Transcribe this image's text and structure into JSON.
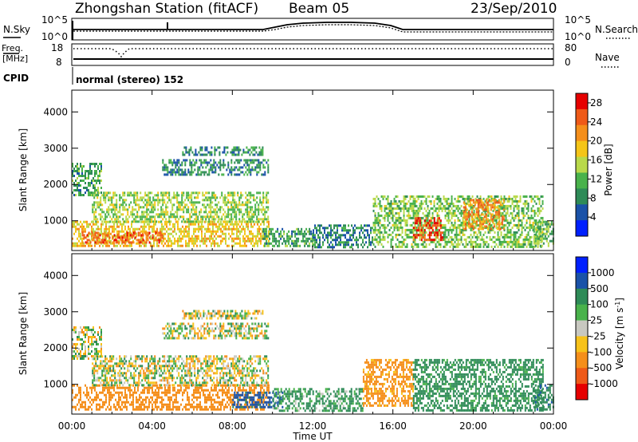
{
  "header": {
    "station": "Zhongshan Station (fitACF)",
    "beam": "Beam 05",
    "date": "23/Sep/2010"
  },
  "summary_panel": {
    "nsky_label": "N.Sky",
    "nsky_ticks": [
      "10^5",
      "10^0"
    ],
    "nsearch_label": "N.Search",
    "nsearch_ticks": [
      "10^5",
      "10^0"
    ],
    "freq_label_line1": "Freq.",
    "freq_label_line2": "[MHz]",
    "freq_ticks": [
      "18",
      "8"
    ],
    "nave_label": "Nave",
    "nave_ticks": [
      "80",
      "0"
    ],
    "cpid_label": "CPID",
    "cpid_text": "normal (stereo) 152"
  },
  "colors": {
    "power": [
      "#0020ff",
      "#1a52a8",
      "#2e8b57",
      "#49b24b",
      "#b9d94a",
      "#f5c518",
      "#f58f1b",
      "#ef5a18",
      "#e60000"
    ],
    "velocity": [
      "#0020ff",
      "#1a52a8",
      "#2e8b57",
      "#49b24b",
      "#c8c8c0",
      "#f7c21a",
      "#f58f1b",
      "#ef5a18",
      "#e60000"
    ]
  },
  "chart_data": [
    {
      "type": "heatmap",
      "title": "",
      "xlabel": "Time UT",
      "ylabel": "Slant Range [km]",
      "x_ticks": [
        "00:00",
        "04:00",
        "08:00",
        "12:00",
        "16:00",
        "20:00",
        "00:00"
      ],
      "xlim_hours": [
        0,
        24
      ],
      "y_ticks": [
        1000,
        2000,
        3000,
        4000
      ],
      "ylim": [
        180,
        4600
      ],
      "colorbar": {
        "label": "Power [dB]",
        "ticks": [
          "4",
          "8",
          "12",
          "16",
          "20",
          "24",
          "28"
        ],
        "range": [
          0,
          30
        ]
      },
      "regions": [
        {
          "t": [
            0.0,
            9.8
          ],
          "r": [
            300,
            1000
          ],
          "value": 18
        },
        {
          "t": [
            0.5,
            4.5
          ],
          "r": [
            400,
            700
          ],
          "value": 24
        },
        {
          "t": [
            0.0,
            1.5
          ],
          "r": [
            1700,
            2600
          ],
          "value": 10
        },
        {
          "t": [
            1.0,
            9.8
          ],
          "r": [
            1000,
            1800
          ],
          "value": 14
        },
        {
          "t": [
            4.5,
            9.8
          ],
          "r": [
            2300,
            2700
          ],
          "value": 8
        },
        {
          "t": [
            5.5,
            9.5
          ],
          "r": [
            2800,
            3050
          ],
          "value": 9
        },
        {
          "t": [
            9.5,
            12.0
          ],
          "r": [
            300,
            800
          ],
          "value": 10
        },
        {
          "t": [
            12.0,
            15.0
          ],
          "r": [
            300,
            900
          ],
          "value": 8
        },
        {
          "t": [
            15.0,
            23.5
          ],
          "r": [
            300,
            1700
          ],
          "value": 13
        },
        {
          "t": [
            17.0,
            18.5
          ],
          "r": [
            500,
            1100
          ],
          "value": 26
        },
        {
          "t": [
            19.5,
            21.5
          ],
          "r": [
            800,
            1600
          ],
          "value": 22
        },
        {
          "t": [
            23.0,
            24.0
          ],
          "r": [
            300,
            1000
          ],
          "value": 12
        }
      ]
    },
    {
      "type": "heatmap",
      "title": "",
      "xlabel": "Time UT",
      "ylabel": "Slant Range [km]",
      "x_ticks": [
        "00:00",
        "04:00",
        "08:00",
        "12:00",
        "16:00",
        "20:00",
        "00:00"
      ],
      "xlim_hours": [
        0,
        24
      ],
      "y_ticks": [
        1000,
        2000,
        3000,
        4000
      ],
      "ylim": [
        180,
        4600
      ],
      "colorbar": {
        "label": "Velocity [m s^-1]",
        "ticks": [
          "1000",
          "500",
          "100",
          "25",
          "-25",
          "-100",
          "-500",
          "-1000"
        ]
      },
      "regions": [
        {
          "t": [
            0.0,
            9.8
          ],
          "r": [
            300,
            1000
          ],
          "value": -300
        },
        {
          "t": [
            0.0,
            1.5
          ],
          "r": [
            1700,
            2600
          ],
          "value": 0
        },
        {
          "t": [
            1.0,
            9.8
          ],
          "r": [
            1000,
            1800
          ],
          "value": 0
        },
        {
          "t": [
            4.5,
            9.8
          ],
          "r": [
            2300,
            2700
          ],
          "value": 0
        },
        {
          "t": [
            5.5,
            9.5
          ],
          "r": [
            2800,
            3050
          ],
          "value": 0
        },
        {
          "t": [
            8.0,
            10.5
          ],
          "r": [
            400,
            800
          ],
          "value": 600
        },
        {
          "t": [
            10.0,
            14.5
          ],
          "r": [
            300,
            900
          ],
          "value": 150
        },
        {
          "t": [
            14.5,
            17.0
          ],
          "r": [
            400,
            1700
          ],
          "value": -200
        },
        {
          "t": [
            17.0,
            23.5
          ],
          "r": [
            300,
            1700
          ],
          "value": 200
        },
        {
          "t": [
            23.0,
            24.0
          ],
          "r": [
            300,
            1000
          ],
          "value": 400
        }
      ]
    }
  ],
  "ui": {
    "xlabel": "Time UT",
    "ylabel": "Slant Range [km]",
    "power_label": "Power [dB]",
    "velocity_label": "Velocity [m s",
    "velocity_exp": "-1",
    "velocity_close": "]"
  }
}
